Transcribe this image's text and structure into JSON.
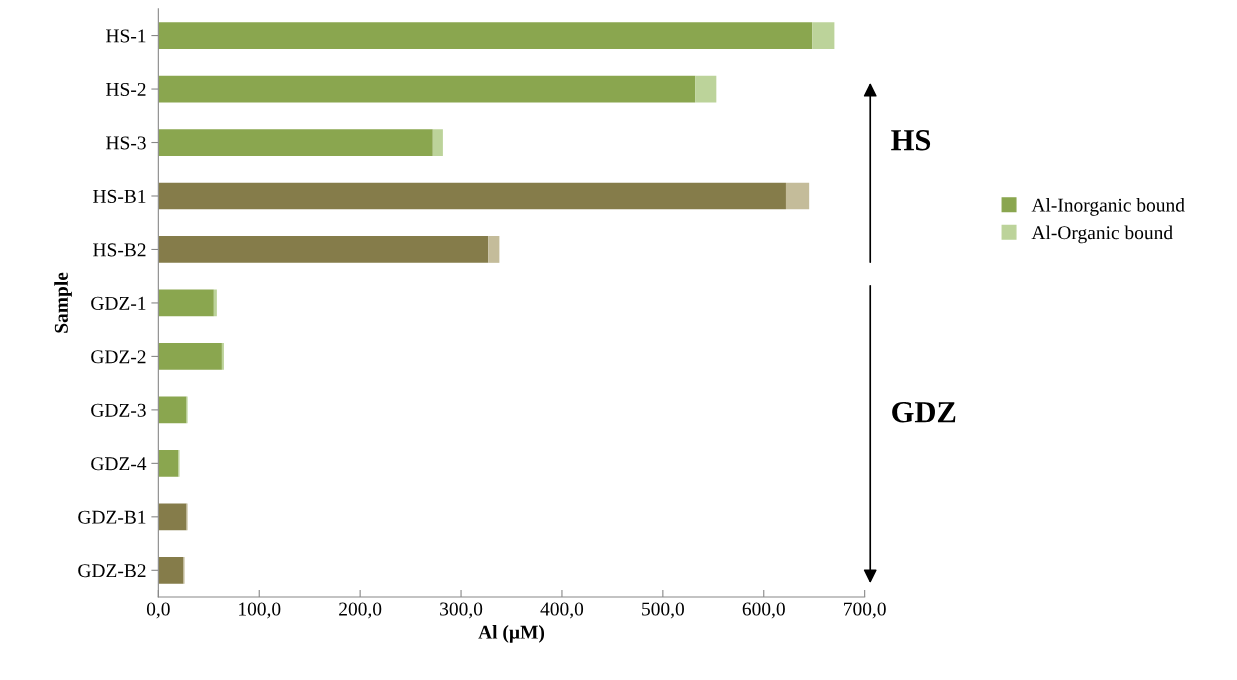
{
  "chart_data": {
    "type": "bar",
    "orientation": "horizontal",
    "stacked": true,
    "xlabel": "Al (µM)",
    "ylabel": "Sample",
    "categories": [
      "HS-1",
      "HS-2",
      "HS-3",
      "HS-B1",
      "HS-B2",
      "GDZ-1",
      "GDZ-2",
      "GDZ-3",
      "GDZ-4",
      "GDZ-B1",
      "GDZ-B2"
    ],
    "series": [
      {
        "name": "Al-Inorganic bound",
        "color": "#8aa64f",
        "colors": [
          "#8aa64f",
          "#8aa64f",
          "#8aa64f",
          "#857c4a",
          "#857c4a",
          "#8aa64f",
          "#8aa64f",
          "#8aa64f",
          "#8aa64f",
          "#857c4a",
          "#857c4a"
        ],
        "values": [
          648,
          532,
          272,
          622,
          327,
          55,
          63,
          28,
          20,
          28,
          25
        ]
      },
      {
        "name": "Al-Organic bound",
        "color": "#bcd39a",
        "colors": [
          "#bcd39a",
          "#bcd39a",
          "#bcd39a",
          "#c4bc9a",
          "#c4bc9a",
          "#bcd39a",
          "#bcd39a",
          "#bcd39a",
          "#bcd39a",
          "#c4bc9a",
          "#c4bc9a"
        ],
        "values": [
          22,
          21,
          10,
          23,
          11,
          3,
          2,
          1,
          1,
          1,
          1
        ]
      }
    ],
    "xlim": [
      0,
      700
    ],
    "xticks": [
      {
        "value": 0,
        "label": "0,0"
      },
      {
        "value": 100,
        "label": "100,0"
      },
      {
        "value": 200,
        "label": "200,0"
      },
      {
        "value": 300,
        "label": "300,0"
      },
      {
        "value": 400,
        "label": "400,0"
      },
      {
        "value": 500,
        "label": "500,0"
      },
      {
        "value": 600,
        "label": "600,0"
      },
      {
        "value": 700,
        "label": "700,0"
      }
    ],
    "annotations": [
      "HS",
      "GDZ"
    ],
    "legend": "right",
    "grid": false
  }
}
